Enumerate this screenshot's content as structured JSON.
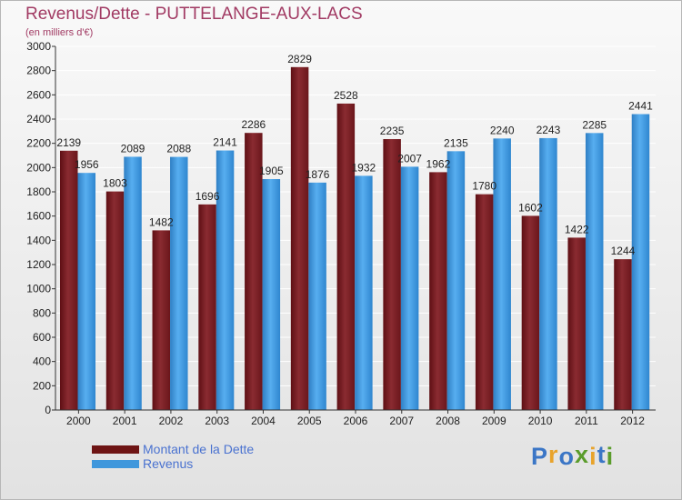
{
  "title": "Revenus/Dette - PUTTELANGE-AUX-LACS",
  "subtitle": "(en milliers d'€)",
  "logo": {
    "letters": [
      "P",
      "r",
      "o",
      "x",
      "i",
      "t",
      "i"
    ],
    "colors": [
      "#3b76c6",
      "#e8a32b",
      "#3b76c6",
      "#5a9c2b",
      "#e8a32b",
      "#3b76c6",
      "#5a9c2b"
    ]
  },
  "colors": {
    "dette": "#7b1f24",
    "revenus": "#3f97dc",
    "axis": "#333333",
    "grid": "#ffffff"
  },
  "legend": [
    {
      "label": "Montant de la Dette",
      "color": "#6e1414"
    },
    {
      "label": "Revenus",
      "color": "#3f97dc"
    }
  ],
  "chart_data": {
    "type": "bar",
    "title": "Revenus/Dette - PUTTELANGE-AUX-LACS",
    "subtitle": "(en milliers d'€)",
    "categories": [
      "2000",
      "2001",
      "2002",
      "2003",
      "2004",
      "2005",
      "2006",
      "2007",
      "2008",
      "2009",
      "2010",
      "2011",
      "2012"
    ],
    "series": [
      {
        "name": "Montant de la Dette",
        "values": [
          2139,
          1803,
          1482,
          1696,
          2286,
          2829,
          2528,
          2235,
          1962,
          1780,
          1602,
          1422,
          1244
        ]
      },
      {
        "name": "Revenus",
        "values": [
          1956,
          2089,
          2088,
          2141,
          1905,
          1876,
          1932,
          2007,
          2135,
          2240,
          2243,
          2285,
          2441
        ]
      }
    ],
    "yticks": [
      0,
      200,
      400,
      600,
      800,
      1000,
      1200,
      1400,
      1600,
      1800,
      2000,
      2200,
      2400,
      2600,
      2800,
      3000
    ],
    "ylim": [
      0,
      3000
    ],
    "xlabel": "",
    "ylabel": "",
    "grid": true,
    "legend_position": "bottom-left"
  }
}
